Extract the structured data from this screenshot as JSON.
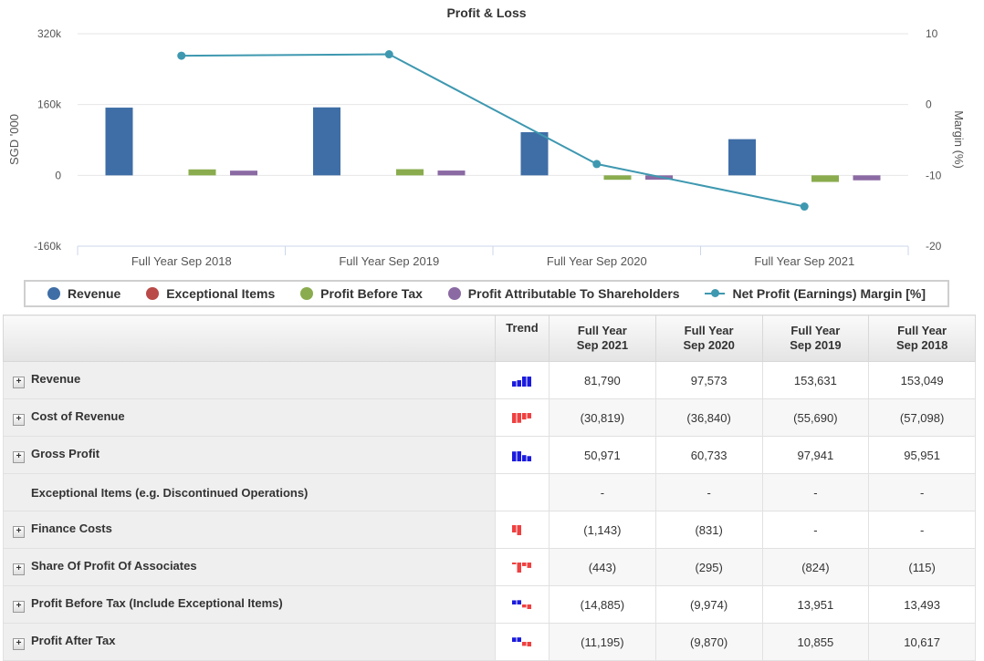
{
  "chart_data": {
    "type": "bar",
    "title": "Profit & Loss",
    "ylabel": "SGD '000",
    "y2label": "Margin (%)",
    "ylim": [
      -160000,
      320000
    ],
    "y2lim": [
      -20,
      10
    ],
    "y_ticks": [
      "320k",
      "160k",
      "0",
      "-160k"
    ],
    "y2_ticks": [
      "10",
      "0",
      "-10",
      "-20"
    ],
    "categories": [
      "Full Year Sep 2018",
      "Full Year Sep 2019",
      "Full Year Sep 2020",
      "Full Year Sep 2021"
    ],
    "series": [
      {
        "name": "Revenue",
        "type": "bar",
        "color": "#3f6ea6",
        "values": [
          153049,
          153631,
          97573,
          81790
        ]
      },
      {
        "name": "Exceptional Items",
        "type": "bar",
        "color": "#b94a48",
        "values": [
          0,
          0,
          0,
          0
        ]
      },
      {
        "name": "Profit Before Tax",
        "type": "bar",
        "color": "#8aac4e",
        "values": [
          13493,
          13951,
          -9974,
          -14885
        ]
      },
      {
        "name": "Profit Attributable To Shareholders",
        "type": "bar",
        "color": "#8b6aa3",
        "values": [
          10617,
          10855,
          -9870,
          -11195
        ]
      },
      {
        "name": "Net Profit (Earnings) Margin [%]",
        "type": "line",
        "axis": "right",
        "color": "#3e98b0",
        "values": [
          6.9,
          7.1,
          -8.4,
          -14.4
        ]
      }
    ],
    "grid": true,
    "legend": "bottom"
  },
  "legend": [
    {
      "label": "Revenue",
      "color": "#3f6ea6",
      "kind": "dot"
    },
    {
      "label": "Exceptional Items",
      "color": "#b94a48",
      "kind": "dot"
    },
    {
      "label": "Profit Before Tax",
      "color": "#8aac4e",
      "kind": "dot"
    },
    {
      "label": "Profit Attributable To Shareholders",
      "color": "#8b6aa3",
      "kind": "dot"
    },
    {
      "label": "Net Profit (Earnings) Margin [%]",
      "color": "#3e98b0",
      "kind": "line"
    }
  ],
  "table": {
    "trend_header": "Trend",
    "columns": [
      "Full Year\nSep 2021",
      "Full Year\nSep 2020",
      "Full Year\nSep 2019",
      "Full Year\nSep 2018"
    ],
    "rows": [
      {
        "label": "Revenue",
        "expandable": true,
        "trend": [
          81790,
          97573,
          153631,
          153049
        ],
        "values": [
          "81,790",
          "97,573",
          "153,631",
          "153,049"
        ]
      },
      {
        "label": "Cost of Revenue",
        "expandable": true,
        "trend": [
          -57098,
          -55690,
          -36840,
          -30819
        ],
        "values": [
          "(30,819)",
          "(36,840)",
          "(55,690)",
          "(57,098)"
        ]
      },
      {
        "label": "Gross Profit",
        "expandable": true,
        "trend": [
          95951,
          97941,
          60733,
          50971
        ],
        "values": [
          "50,971",
          "60,733",
          "97,941",
          "95,951"
        ]
      },
      {
        "label": "Exceptional Items (e.g. Discontinued Operations)",
        "expandable": false,
        "trend": [],
        "values": [
          "-",
          "-",
          "-",
          "-"
        ]
      },
      {
        "label": "Finance Costs",
        "expandable": true,
        "trend": [
          -831,
          -1143
        ],
        "values": [
          "(1,143)",
          "(831)",
          "-",
          "-"
        ]
      },
      {
        "label": "Share Of Profit Of Associates",
        "expandable": true,
        "trend": [
          -115,
          -824,
          -295,
          -443
        ],
        "values": [
          "(443)",
          "(295)",
          "(824)",
          "(115)"
        ]
      },
      {
        "label": "Profit Before Tax (Include Exceptional Items)",
        "expandable": true,
        "trend": [
          13493,
          13951,
          -9974,
          -14885
        ],
        "values": [
          "(14,885)",
          "(9,974)",
          "13,951",
          "13,493"
        ]
      },
      {
        "label": "Profit After Tax",
        "expandable": true,
        "trend": [
          10617,
          10855,
          -9870,
          -11195
        ],
        "values": [
          "(11,195)",
          "(9,870)",
          "10,855",
          "10,617"
        ]
      }
    ]
  }
}
